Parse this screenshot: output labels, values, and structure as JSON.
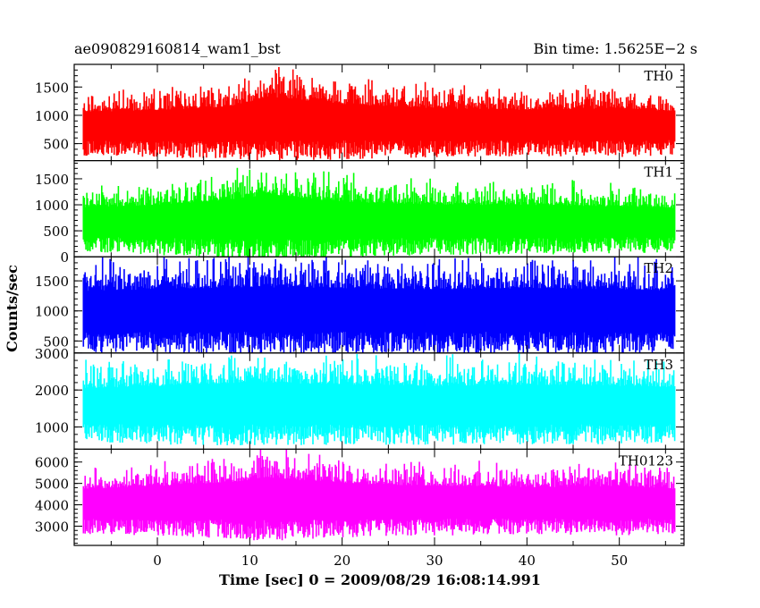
{
  "header": {
    "title": "ae090829160814_wam1_bst",
    "bin_time": "Bin time: 1.5625E−2 s"
  },
  "chart_data": {
    "type": "line",
    "xlabel": "Time [sec] 0 = 2009/08/29 16:08:14.991",
    "ylabel": "Counts/sec",
    "xlim": [
      -9,
      57
    ],
    "x_ticks": [
      0,
      10,
      20,
      30,
      40,
      50
    ],
    "panels": [
      {
        "name": "TH0",
        "color": "#ff0000",
        "ylim": [
          200,
          1900
        ],
        "y_ticks": [
          500,
          1000,
          1500
        ],
        "envelope": {
          "x": [
            -8,
            0,
            8,
            12,
            20,
            30,
            40,
            50,
            56
          ],
          "low": [
            420,
            400,
            380,
            360,
            390,
            400,
            420,
            410,
            430
          ],
          "high": [
            1300,
            1350,
            1450,
            1700,
            1500,
            1400,
            1350,
            1400,
            1300
          ]
        }
      },
      {
        "name": "TH1",
        "color": "#00ff00",
        "ylim": [
          0,
          1850
        ],
        "y_ticks": [
          0,
          500,
          1000,
          1500
        ],
        "envelope": {
          "x": [
            -8,
            0,
            8,
            12,
            20,
            30,
            40,
            50,
            56
          ],
          "low": [
            250,
            200,
            150,
            120,
            160,
            200,
            200,
            220,
            230
          ],
          "high": [
            1200,
            1300,
            1450,
            1600,
            1400,
            1300,
            1300,
            1250,
            1200
          ]
        }
      },
      {
        "name": "TH2",
        "color": "#0000ff",
        "ylim": [
          300,
          1900
        ],
        "y_ticks": [
          500,
          1000,
          1500
        ],
        "envelope": {
          "x": [
            -8,
            0,
            10,
            20,
            30,
            40,
            50,
            56
          ],
          "low": [
            480,
            470,
            460,
            470,
            460,
            470,
            460,
            480
          ],
          "high": [
            1650,
            1700,
            1750,
            1720,
            1700,
            1720,
            1700,
            1650
          ]
        }
      },
      {
        "name": "TH3",
        "color": "#00ffff",
        "ylim": [
          400,
          3000
        ],
        "y_ticks": [
          1000,
          2000,
          3000
        ],
        "envelope": {
          "x": [
            -8,
            0,
            10,
            20,
            30,
            40,
            50,
            56
          ],
          "low": [
            850,
            800,
            780,
            800,
            790,
            800,
            800,
            820
          ],
          "high": [
            2500,
            2600,
            2750,
            2650,
            2600,
            2650,
            2600,
            2550
          ]
        }
      },
      {
        "name": "TH0123",
        "color": "#ff00ff",
        "ylim": [
          2100,
          6600
        ],
        "y_ticks": [
          3000,
          4000,
          5000,
          6000
        ],
        "envelope": {
          "x": [
            -8,
            0,
            8,
            12,
            20,
            30,
            40,
            50,
            56
          ],
          "low": [
            3000,
            2950,
            2850,
            2800,
            2900,
            2950,
            3000,
            2950,
            3000
          ],
          "high": [
            5400,
            5600,
            5900,
            6200,
            5800,
            5600,
            5500,
            5600,
            5400
          ]
        }
      }
    ]
  }
}
